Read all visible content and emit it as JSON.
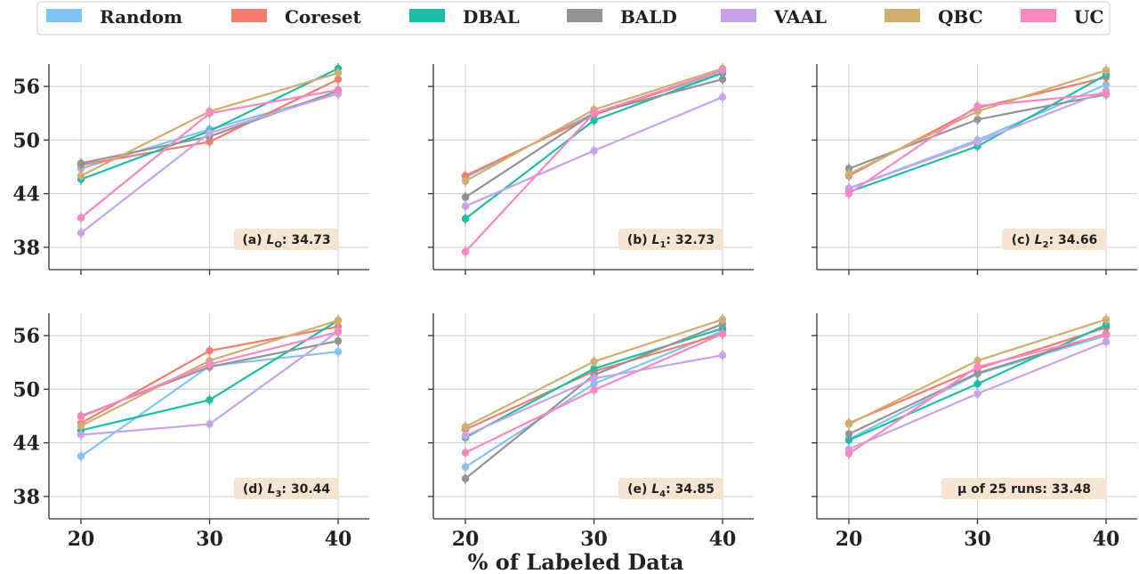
{
  "legend": {
    "items": [
      {
        "label": "Random",
        "color": "#7fc4f4"
      },
      {
        "label": "Coreset",
        "color": "#f47c6c"
      },
      {
        "label": "DBAL",
        "color": "#1abfa6"
      },
      {
        "label": "BALD",
        "color": "#939393"
      },
      {
        "label": "VAAL",
        "color": "#c8a2ea"
      },
      {
        "label": "QBC",
        "color": "#d0ae6e"
      },
      {
        "label": "UC",
        "color": "#fb86c2"
      }
    ]
  },
  "xlabel": "% of Labeled Data",
  "chart_data": [
    {
      "type": "line",
      "annotation": "(a) L_O: 34.73",
      "x": [
        20,
        30,
        40
      ],
      "ylim": [
        35.5,
        58.5
      ],
      "yticks": [
        38,
        44,
        50,
        56
      ],
      "xticks": [
        20,
        30,
        40
      ],
      "grid": true,
      "series": [
        {
          "name": "Random",
          "values": [
            46.8,
            51.2,
            55.2
          ]
        },
        {
          "name": "Coreset",
          "values": [
            47.2,
            49.8,
            56.8
          ]
        },
        {
          "name": "DBAL",
          "values": [
            45.6,
            51.0,
            58.0
          ]
        },
        {
          "name": "BALD",
          "values": [
            47.4,
            50.4,
            55.5
          ]
        },
        {
          "name": "VAAL",
          "values": [
            39.6,
            50.8,
            55.2
          ]
        },
        {
          "name": "QBC",
          "values": [
            46.0,
            53.2,
            57.5
          ]
        },
        {
          "name": "UC",
          "values": [
            41.3,
            53.0,
            55.6
          ]
        }
      ]
    },
    {
      "type": "line",
      "annotation": "(b) L_1: 32.73",
      "x": [
        20,
        30,
        40
      ],
      "ylim": [
        35.5,
        58.5
      ],
      "yticks": [
        38,
        44,
        50,
        56
      ],
      "xticks": [
        20,
        30,
        40
      ],
      "grid": true,
      "series": [
        {
          "name": "Random",
          "values": [
            45.8,
            53.0,
            57.5
          ]
        },
        {
          "name": "Coreset",
          "values": [
            46.0,
            52.8,
            57.8
          ]
        },
        {
          "name": "DBAL",
          "values": [
            41.2,
            52.2,
            57.5
          ]
        },
        {
          "name": "BALD",
          "values": [
            43.6,
            53.0,
            56.8
          ]
        },
        {
          "name": "VAAL",
          "values": [
            42.6,
            48.8,
            54.8
          ]
        },
        {
          "name": "QBC",
          "values": [
            45.4,
            53.4,
            58.0
          ]
        },
        {
          "name": "UC",
          "values": [
            37.5,
            53.0,
            57.8
          ]
        }
      ]
    },
    {
      "type": "line",
      "annotation": "(c) L_2: 34.66",
      "x": [
        20,
        30,
        40
      ],
      "ylim": [
        35.5,
        58.5
      ],
      "yticks": [
        38,
        44,
        50,
        56
      ],
      "xticks": [
        20,
        30,
        40
      ],
      "grid": true,
      "series": [
        {
          "name": "Random",
          "values": [
            44.6,
            50.0,
            56.2
          ]
        },
        {
          "name": "Coreset",
          "values": [
            46.0,
            53.6,
            57.0
          ]
        },
        {
          "name": "DBAL",
          "values": [
            44.2,
            49.3,
            57.3
          ]
        },
        {
          "name": "BALD",
          "values": [
            46.8,
            52.3,
            55.1
          ]
        },
        {
          "name": "VAAL",
          "values": [
            44.6,
            49.8,
            55.5
          ]
        },
        {
          "name": "QBC",
          "values": [
            46.2,
            53.2,
            57.8
          ]
        },
        {
          "name": "UC",
          "values": [
            44.0,
            53.8,
            55.2
          ]
        }
      ]
    },
    {
      "type": "line",
      "annotation": "(d) L_3: 30.44",
      "x": [
        20,
        30,
        40
      ],
      "ylim": [
        35.5,
        58.5
      ],
      "yticks": [
        38,
        44,
        50,
        56
      ],
      "xticks": [
        20,
        30,
        40
      ],
      "grid": true,
      "series": [
        {
          "name": "Random",
          "values": [
            42.5,
            52.6,
            54.2
          ]
        },
        {
          "name": "Coreset",
          "values": [
            46.2,
            54.3,
            57.0
          ]
        },
        {
          "name": "DBAL",
          "values": [
            45.4,
            48.8,
            57.7
          ]
        },
        {
          "name": "BALD",
          "values": [
            47.0,
            52.5,
            55.4
          ]
        },
        {
          "name": "VAAL",
          "values": [
            44.9,
            46.1,
            56.5
          ]
        },
        {
          "name": "QBC",
          "values": [
            45.9,
            53.2,
            57.7
          ]
        },
        {
          "name": "UC",
          "values": [
            46.9,
            52.8,
            56.4
          ]
        }
      ]
    },
    {
      "type": "line",
      "annotation": "(e) L_4: 34.85",
      "x": [
        20,
        30,
        40
      ],
      "ylim": [
        35.5,
        58.5
      ],
      "yticks": [
        38,
        44,
        50,
        56
      ],
      "xticks": [
        20,
        30,
        40
      ],
      "grid": true,
      "series": [
        {
          "name": "Random",
          "values": [
            41.3,
            50.6,
            56.5
          ]
        },
        {
          "name": "Coreset",
          "values": [
            45.5,
            52.0,
            56.2
          ]
        },
        {
          "name": "DBAL",
          "values": [
            44.6,
            52.3,
            56.8
          ]
        },
        {
          "name": "BALD",
          "values": [
            40.0,
            51.6,
            57.3
          ]
        },
        {
          "name": "VAAL",
          "values": [
            44.8,
            51.2,
            53.8
          ]
        },
        {
          "name": "QBC",
          "values": [
            45.8,
            53.1,
            57.8
          ]
        },
        {
          "name": "UC",
          "values": [
            42.9,
            49.9,
            56.2
          ]
        }
      ]
    },
    {
      "type": "line",
      "annotation": "μ of 25 runs: 33.48",
      "x": [
        20,
        30,
        40
      ],
      "ylim": [
        35.5,
        58.5
      ],
      "yticks": [
        38,
        44,
        50,
        56
      ],
      "xticks": [
        20,
        30,
        40
      ],
      "grid": true,
      "series": [
        {
          "name": "Random",
          "values": [
            44.4,
            51.7,
            56.0
          ]
        },
        {
          "name": "Coreset",
          "values": [
            46.2,
            52.3,
            56.9
          ]
        },
        {
          "name": "DBAL",
          "values": [
            44.3,
            50.6,
            57.2
          ]
        },
        {
          "name": "BALD",
          "values": [
            45.0,
            51.8,
            56.2
          ]
        },
        {
          "name": "VAAL",
          "values": [
            43.3,
            49.5,
            55.3
          ]
        },
        {
          "name": "QBC",
          "values": [
            46.1,
            53.2,
            57.8
          ]
        },
        {
          "name": "UC",
          "values": [
            42.8,
            52.5,
            56.1
          ]
        }
      ]
    }
  ]
}
